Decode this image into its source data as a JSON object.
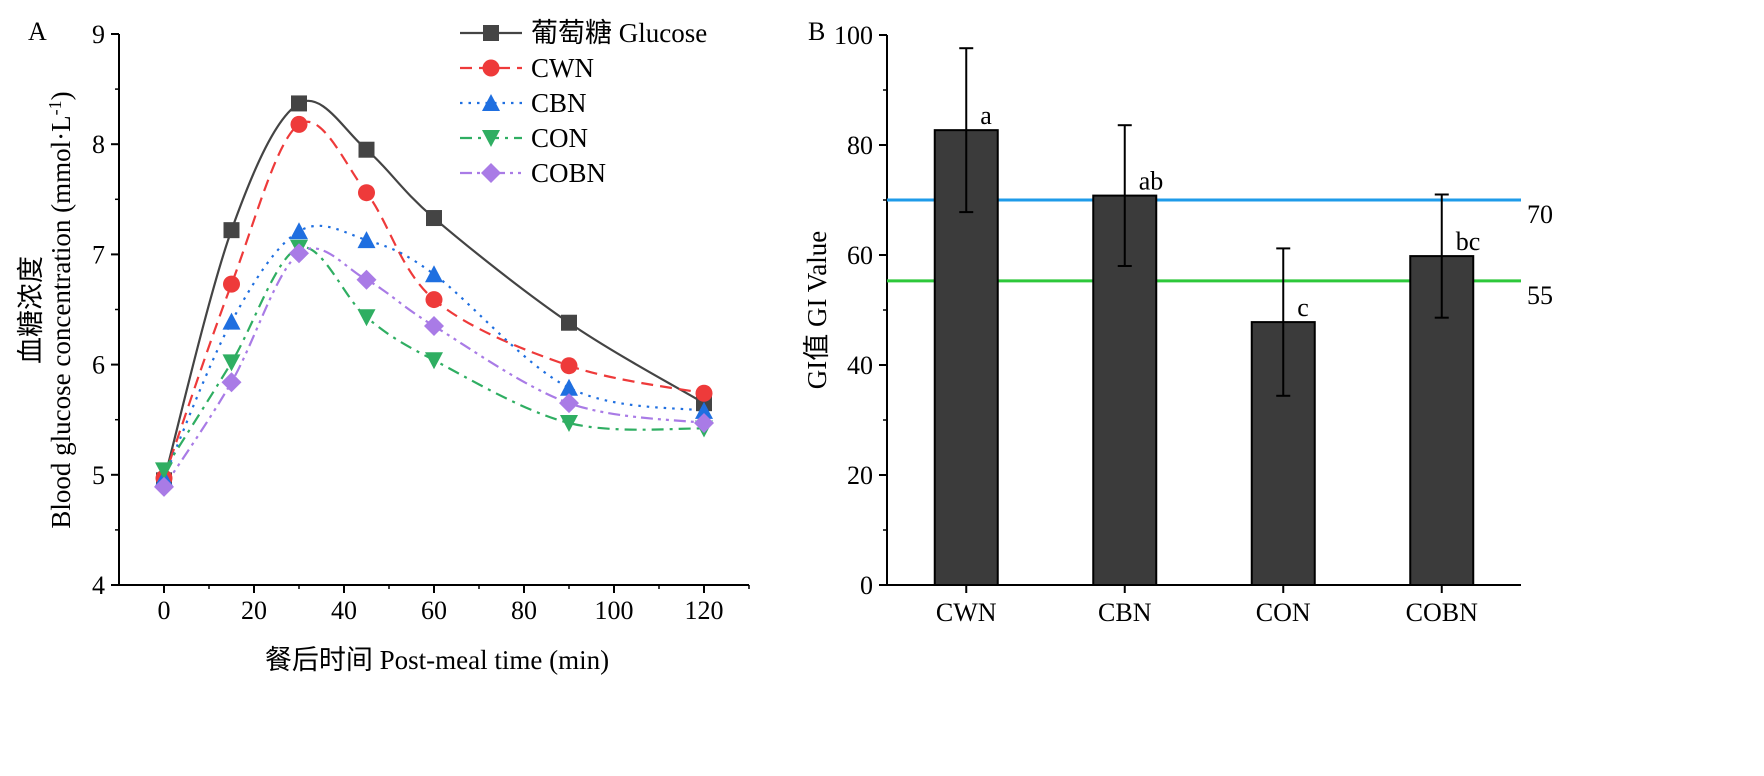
{
  "panels": {
    "a_label": "A",
    "b_label": "B"
  },
  "chart_data": [
    {
      "type": "line",
      "panel": "A",
      "xlabel": "餐后时间 Post-meal time (min)",
      "ylabel_cn": "血糖浓度",
      "ylabel_en": "Blood glucose concentration (mmol·L",
      "ylabel_sup": "-1",
      "ylabel_close": ")",
      "xlim": [
        -10,
        130
      ],
      "ylim": [
        4,
        9
      ],
      "xticks": [
        0,
        20,
        40,
        60,
        80,
        100,
        120
      ],
      "yticks": [
        4,
        5,
        6,
        7,
        8,
        9
      ],
      "x": [
        0,
        15,
        30,
        45,
        60,
        90,
        120
      ],
      "legend_position": "top-center",
      "series": [
        {
          "name": "葡萄糖 Glucose",
          "marker": "square",
          "line": "solid",
          "color": "#444444",
          "values": [
            4.95,
            7.22,
            8.37,
            7.95,
            7.33,
            6.38,
            5.65
          ]
        },
        {
          "name": "CWN",
          "marker": "circle",
          "line": "dashed",
          "color": "#ee3a3a",
          "values": [
            4.97,
            6.73,
            8.18,
            7.56,
            6.59,
            5.99,
            5.74
          ]
        },
        {
          "name": "CBN",
          "marker": "triangle-up",
          "line": "dotted",
          "color": "#1f6fe0",
          "values": [
            4.97,
            6.39,
            7.21,
            7.13,
            6.82,
            5.79,
            5.58
          ]
        },
        {
          "name": "CON",
          "marker": "triangle-down",
          "line": "dash-dot",
          "color": "#2fae62",
          "values": [
            5.04,
            6.02,
            7.06,
            6.43,
            6.04,
            5.47,
            5.42
          ]
        },
        {
          "name": "COBN",
          "marker": "diamond",
          "line": "dash-dot-dot",
          "color": "#a97be6",
          "values": [
            4.89,
            5.84,
            7.01,
            6.77,
            6.35,
            5.65,
            5.47
          ]
        }
      ]
    },
    {
      "type": "bar",
      "panel": "B",
      "categories": [
        "CWN",
        "CBN",
        "CON",
        "COBN"
      ],
      "values": [
        82.7,
        70.8,
        47.8,
        59.8
      ],
      "error_upper": [
        97.6,
        83.6,
        61.2,
        71.0
      ],
      "error_lower": [
        67.8,
        58.0,
        34.4,
        48.6
      ],
      "significance": [
        "a",
        "ab",
        "c",
        "bc"
      ],
      "ylabel": "GI值 GI Value",
      "ylim": [
        0,
        100
      ],
      "yticks": [
        0,
        20,
        40,
        60,
        80,
        100
      ],
      "bar_color": "#3b3b3b",
      "reference_lines": [
        {
          "value": 70,
          "label": "70",
          "color": "#1e9be9"
        },
        {
          "value": 55.3,
          "label": "55",
          "color": "#2dc83a"
        }
      ]
    }
  ]
}
